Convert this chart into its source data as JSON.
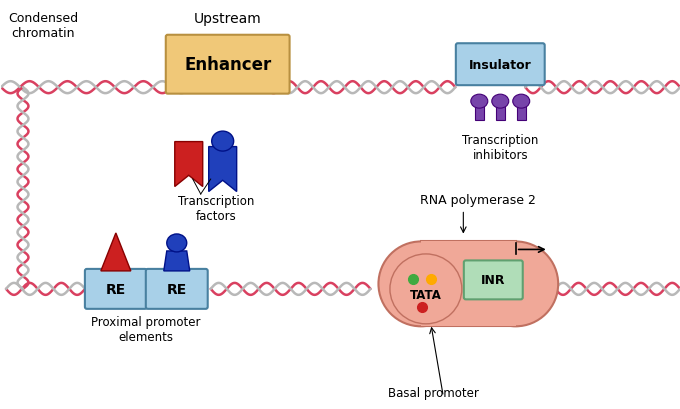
{
  "bg_color": "#ffffff",
  "dna_color1": "#d94060",
  "dna_color2": "#b8b8b8",
  "dna_cross_color": "#888888",
  "enhancer_color": "#f0c878",
  "enhancer_border": "#b89040",
  "insulator_color": "#a8d0e8",
  "insulator_border": "#4880a0",
  "re_box_color": "#a8d0e8",
  "re_box_border": "#4880a0",
  "inr_box_color": "#b0ddb8",
  "inr_box_border": "#60a070",
  "rnapol_color": "#f0a898",
  "rnapol_border": "#c07060",
  "tata_ellipse_color": "#f0a898",
  "red_factor_color": "#cc2020",
  "blue_factor_color": "#2040bb",
  "purple_inhibitor_color": "#7744aa",
  "dot_green": "#40aa40",
  "dot_orange": "#ffaa00",
  "dot_red": "#cc2020",
  "text_color": "#000000",
  "labels": {
    "condensed_chromatin": "Condensed\nchromatin",
    "upstream": "Upstream",
    "enhancer": "Enhancer",
    "insulator": "Insulator",
    "transcription_inhibitors": "Transcription\ninhibitors",
    "transcription_factors": "Transcription\nfactors",
    "proximal_promoter": "Proximal promoter\nelements",
    "rna_pol": "RNA polymerase 2",
    "tata": "TATA",
    "inr": "INR",
    "basal_promoter": "Basal promoter"
  }
}
